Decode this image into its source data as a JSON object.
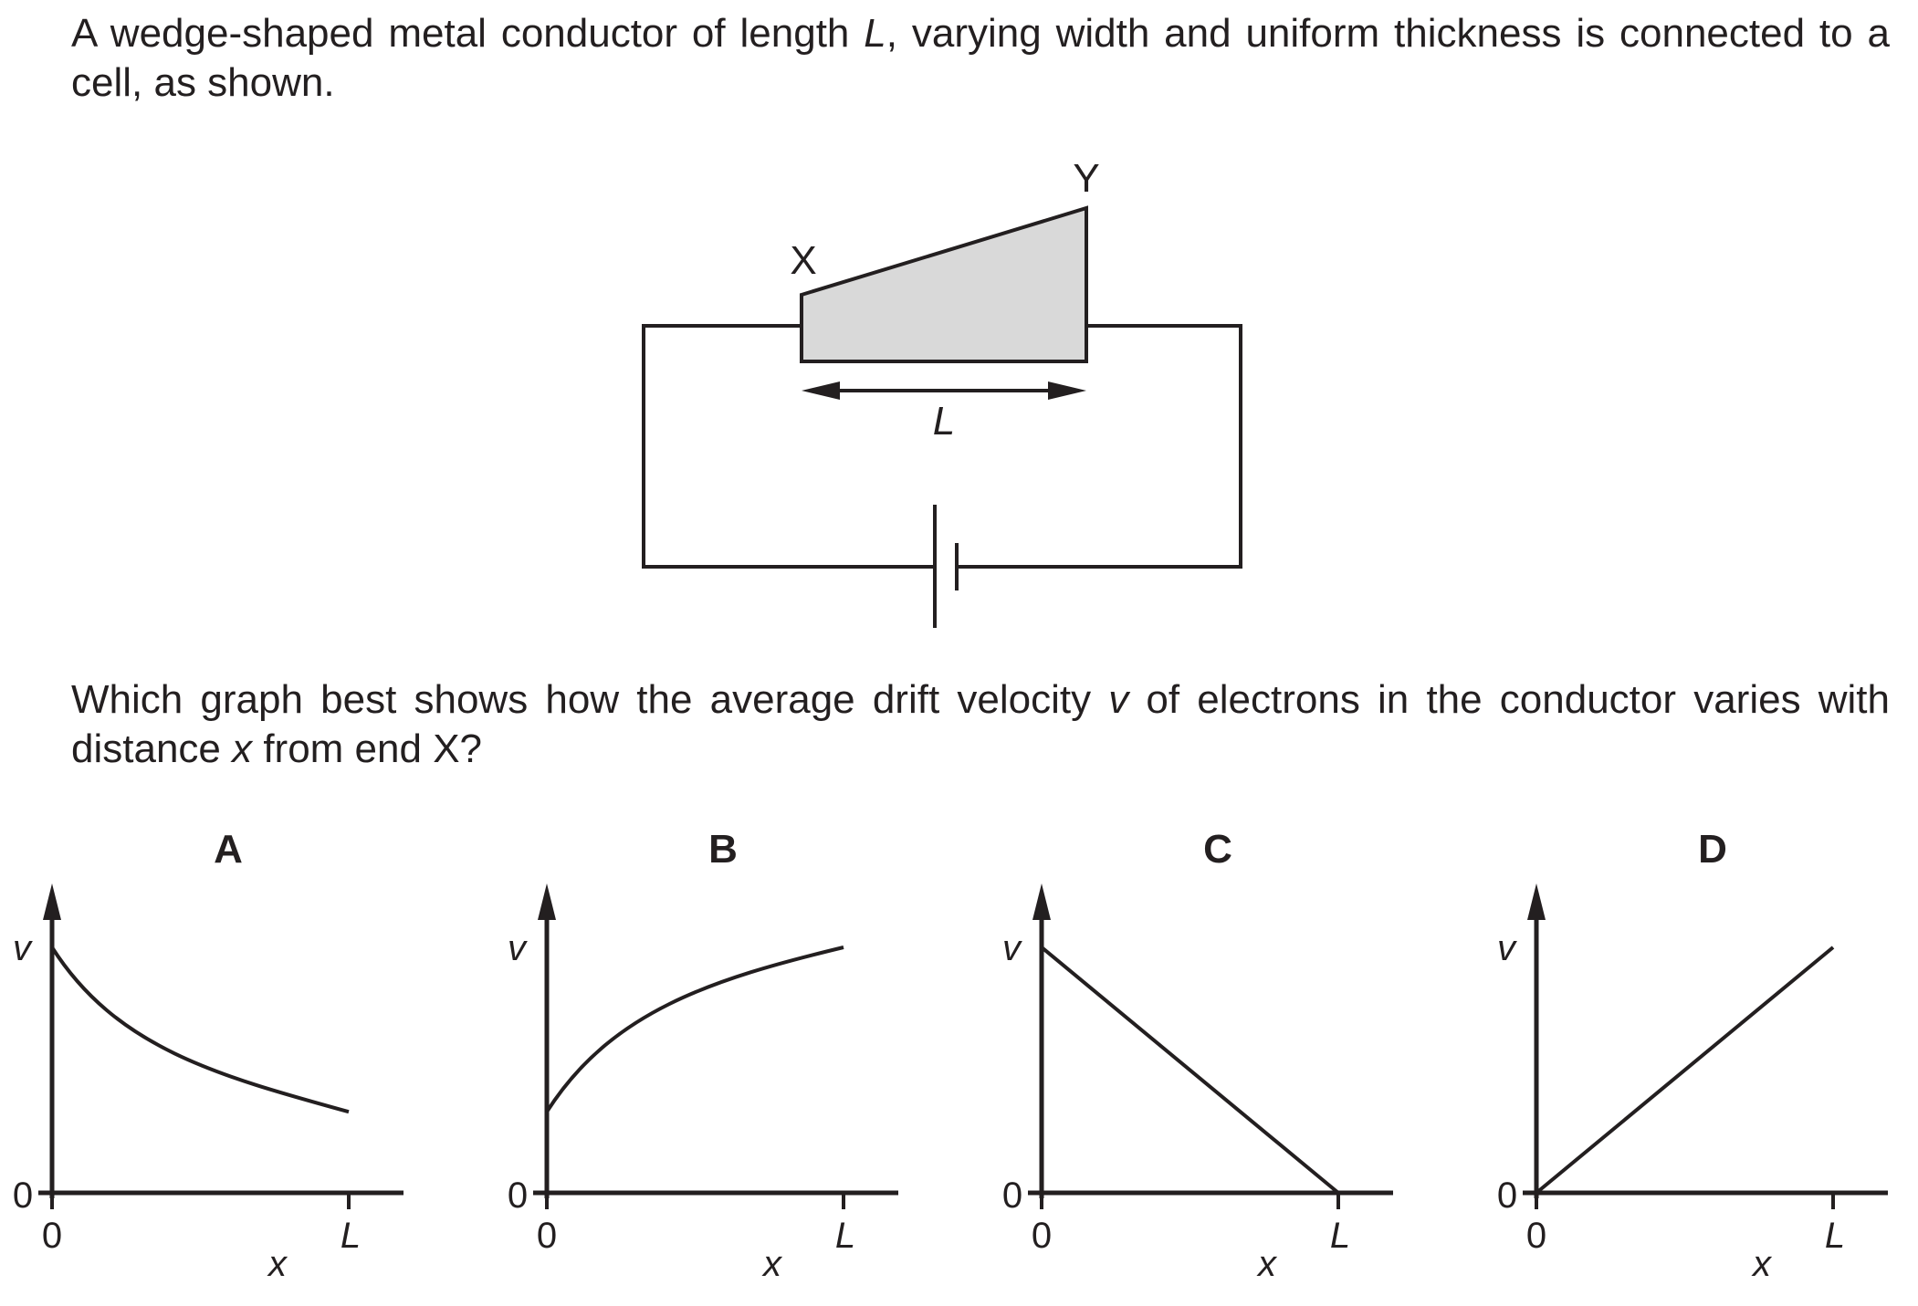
{
  "question": {
    "intro": [
      "A wedge-shaped metal conductor of length ",
      "L",
      ", varying width and uniform thickness is connected to a cell, as shown."
    ],
    "prompt": [
      "Which graph best shows how the average drift velocity ",
      "v",
      " of electrons in the conductor varies with distance ",
      "x",
      " from end X?"
    ]
  },
  "circuit": {
    "label_x": "X",
    "label_y": "Y",
    "length_label": "L",
    "conductor_fill": "#d9d9d9",
    "stroke": "#231f20"
  },
  "graphs": [
    {
      "option": "A",
      "y_axis": "v",
      "x_axis": "x",
      "origin_y": "0",
      "origin_x": "0",
      "end_tick": "L",
      "curve": "decreasing-curve",
      "v_at_0": 1.0,
      "v_at_L": 0.33
    },
    {
      "option": "B",
      "y_axis": "v",
      "x_axis": "x",
      "origin_y": "0",
      "origin_x": "0",
      "end_tick": "L",
      "curve": "increasing-curve",
      "v_at_0": 0.33,
      "v_at_L": 1.0
    },
    {
      "option": "C",
      "y_axis": "v",
      "x_axis": "x",
      "origin_y": "0",
      "origin_x": "0",
      "end_tick": "L",
      "curve": "decreasing-line",
      "v_at_0": 1.0,
      "v_at_L": 0.0
    },
    {
      "option": "D",
      "y_axis": "v",
      "x_axis": "x",
      "origin_y": "0",
      "origin_x": "0",
      "end_tick": "L",
      "curve": "increasing-line",
      "v_at_0": 0.0,
      "v_at_L": 1.0
    }
  ]
}
